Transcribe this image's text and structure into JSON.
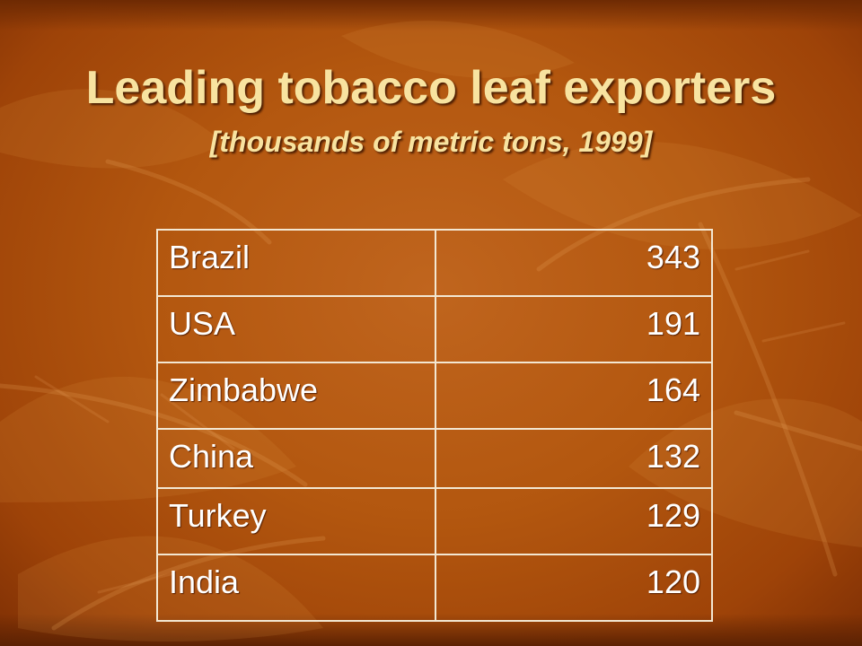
{
  "slide": {
    "title": "Leading tobacco leaf exporters",
    "subtitle": "[thousands of metric tons, 1999]"
  },
  "table": {
    "rows": [
      {
        "country": "Brazil",
        "value": "343"
      },
      {
        "country": "USA",
        "value": "191"
      },
      {
        "country": "Zimbabwe",
        "value": "164"
      },
      {
        "country": "China",
        "value": "132"
      },
      {
        "country": "Turkey",
        "value": "129"
      },
      {
        "country": "India",
        "value": "120"
      }
    ]
  },
  "colors": {
    "background": "#b3570f",
    "title_text": "#f8e3a0",
    "table_text": "#ffffff",
    "table_border": "#f3e7d2"
  }
}
